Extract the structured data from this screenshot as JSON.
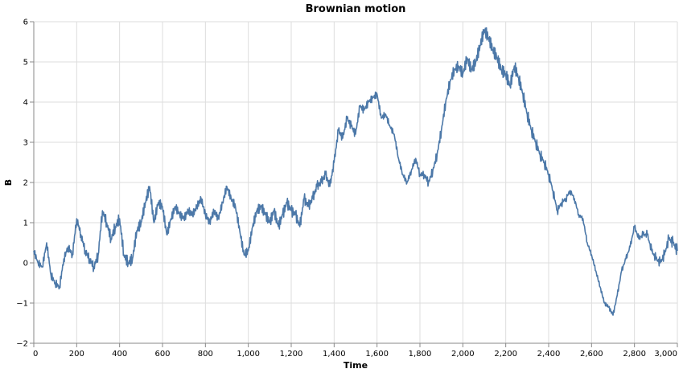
{
  "chart_data": {
    "type": "line",
    "title": "Brownian motion",
    "xlabel": "Time",
    "ylabel": "B",
    "xlim": [
      0,
      3000
    ],
    "ylim": [
      -2,
      6
    ],
    "x_ticks": [
      0,
      200,
      400,
      600,
      800,
      1000,
      1200,
      1400,
      1600,
      1800,
      2000,
      2200,
      2400,
      2600,
      2800,
      3000
    ],
    "x_tick_labels": [
      "0",
      "200",
      "400",
      "600",
      "800",
      "1,000",
      "1,200",
      "1,400",
      "1,600",
      "1,800",
      "2,000",
      "2,200",
      "2,400",
      "2,600",
      "2,800",
      "3,000"
    ],
    "y_ticks": [
      -2,
      -1,
      0,
      1,
      2,
      3,
      4,
      5,
      6
    ],
    "y_tick_labels": [
      "−2",
      "−1",
      "0",
      "1",
      "2",
      "3",
      "4",
      "5",
      "6"
    ],
    "grid": true,
    "line_color": "#4c78a8",
    "series": [
      {
        "x": [
          0,
          20,
          40,
          60,
          80,
          100,
          120,
          140,
          160,
          180,
          200,
          220,
          240,
          260,
          280,
          300,
          320,
          340,
          360,
          380,
          400,
          420,
          440,
          460,
          480,
          500,
          520,
          540,
          560,
          580,
          600,
          620,
          640,
          660,
          680,
          700,
          720,
          740,
          760,
          780,
          800,
          820,
          840,
          860,
          880,
          900,
          920,
          940,
          960,
          980,
          1000,
          1020,
          1040,
          1060,
          1080,
          1100,
          1120,
          1140,
          1160,
          1180,
          1200,
          1220,
          1240,
          1260,
          1280,
          1300,
          1320,
          1340,
          1360,
          1380,
          1400,
          1420,
          1440,
          1460,
          1480,
          1500,
          1520,
          1540,
          1560,
          1580,
          1600,
          1620,
          1640,
          1660,
          1680,
          1700,
          1720,
          1740,
          1760,
          1780,
          1800,
          1820,
          1840,
          1860,
          1880,
          1900,
          1920,
          1940,
          1960,
          1980,
          2000,
          2020,
          2040,
          2060,
          2080,
          2100,
          2120,
          2140,
          2160,
          2180,
          2200,
          2220,
          2240,
          2260,
          2280,
          2300,
          2320,
          2340,
          2360,
          2380,
          2400,
          2420,
          2440,
          2460,
          2480,
          2500,
          2520,
          2540,
          2560,
          2580,
          2600,
          2620,
          2640,
          2660,
          2680,
          2700,
          2720,
          2740,
          2760,
          2780,
          2800,
          2820,
          2840,
          2860,
          2880,
          2900,
          2920,
          2940,
          2960,
          2980,
          3000
        ],
        "y": [
          0.3,
          0.0,
          -0.1,
          0.5,
          -0.3,
          -0.5,
          -0.6,
          0.1,
          0.4,
          0.2,
          1.1,
          0.7,
          0.3,
          0.1,
          -0.1,
          0.2,
          1.3,
          1.0,
          0.6,
          0.9,
          1.1,
          0.2,
          0.0,
          0.1,
          0.8,
          1.0,
          1.5,
          1.9,
          1.0,
          1.5,
          1.4,
          0.7,
          1.1,
          1.4,
          1.2,
          1.1,
          1.3,
          1.2,
          1.4,
          1.6,
          1.2,
          1.0,
          1.3,
          1.1,
          1.5,
          1.9,
          1.6,
          1.4,
          0.8,
          0.2,
          0.3,
          0.9,
          1.3,
          1.4,
          1.2,
          1.0,
          1.3,
          0.9,
          1.2,
          1.5,
          1.3,
          1.2,
          0.9,
          1.6,
          1.4,
          1.6,
          1.9,
          2.0,
          2.2,
          1.9,
          2.5,
          3.3,
          3.1,
          3.6,
          3.4,
          3.2,
          3.9,
          3.8,
          4.0,
          4.1,
          4.2,
          3.6,
          3.7,
          3.4,
          3.2,
          2.6,
          2.2,
          2.0,
          2.3,
          2.6,
          2.2,
          2.2,
          2.0,
          2.3,
          2.7,
          3.3,
          4.0,
          4.5,
          4.8,
          4.9,
          4.7,
          5.1,
          4.8,
          5.0,
          5.4,
          5.8,
          5.6,
          5.3,
          5.1,
          4.8,
          4.7,
          4.4,
          4.9,
          4.6,
          4.2,
          3.7,
          3.3,
          3.0,
          2.7,
          2.5,
          2.2,
          1.8,
          1.3,
          1.5,
          1.6,
          1.8,
          1.6,
          1.2,
          1.1,
          0.5,
          0.2,
          -0.2,
          -0.6,
          -1.0,
          -1.1,
          -1.3,
          -0.8,
          -0.2,
          0.1,
          0.4,
          0.9,
          0.6,
          0.7,
          0.7,
          0.3,
          0.1,
          0.0,
          0.2,
          0.6,
          0.5,
          0.3
        ]
      }
    ]
  }
}
